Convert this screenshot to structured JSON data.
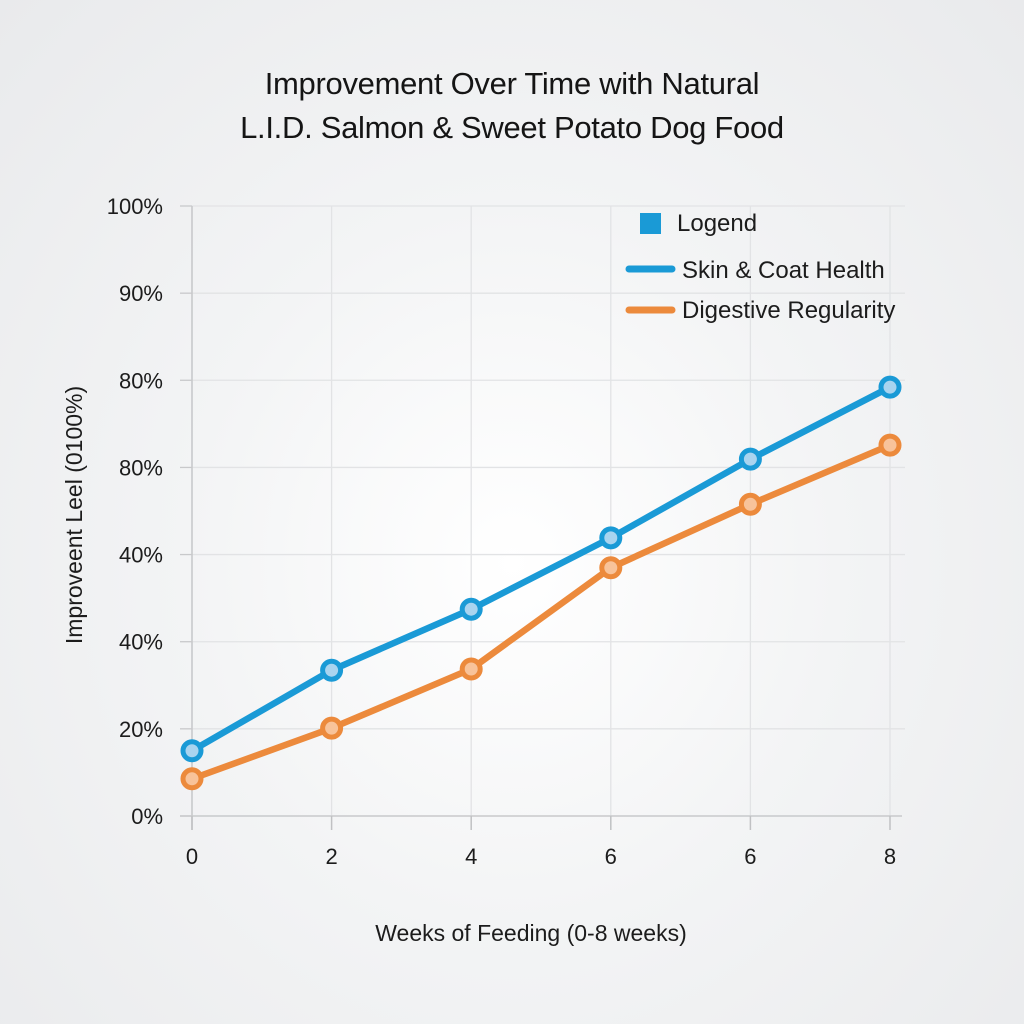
{
  "chart_data": {
    "type": "line",
    "title": [
      "Improvement Over Time with Natural",
      "L.I.D. Salmon & Sweet Potato Dog Food"
    ],
    "xlabel": "Weeks of Feeding (0-8 weeks)",
    "ylabel": "Improveent Leel (0100%)",
    "x_tick_labels": [
      "0",
      "2",
      "4",
      "6",
      "6",
      "8"
    ],
    "y_tick_labels": [
      "0%",
      "20%",
      "40%",
      "40%",
      "80%",
      "80%",
      "90%",
      "100%"
    ],
    "ylim": [
      0,
      100
    ],
    "y_tick_positions": [
      0,
      14.29,
      28.57,
      42.86,
      57.14,
      71.43,
      85.71,
      100
    ],
    "grid": true,
    "legend": {
      "placement": "top-right",
      "title": "Logend",
      "title_marker_color": "#1a9ad6"
    },
    "series": [
      {
        "name": "Skin & Coat Health",
        "color": "#1a9ad6",
        "fill_color": "#a9d4ef",
        "values": [
          10.7,
          23.9,
          33.9,
          45.6,
          58.5,
          70.3
        ]
      },
      {
        "name": "Digestive Regularity",
        "color": "#ec8a3c",
        "fill_color": "#f8c39a",
        "values": [
          6.1,
          14.4,
          24.1,
          40.7,
          51.1,
          60.8
        ]
      }
    ],
    "value_note": "values expressed as percent of the y-axis span (0% tick = 0, 100% tick = 100)"
  }
}
